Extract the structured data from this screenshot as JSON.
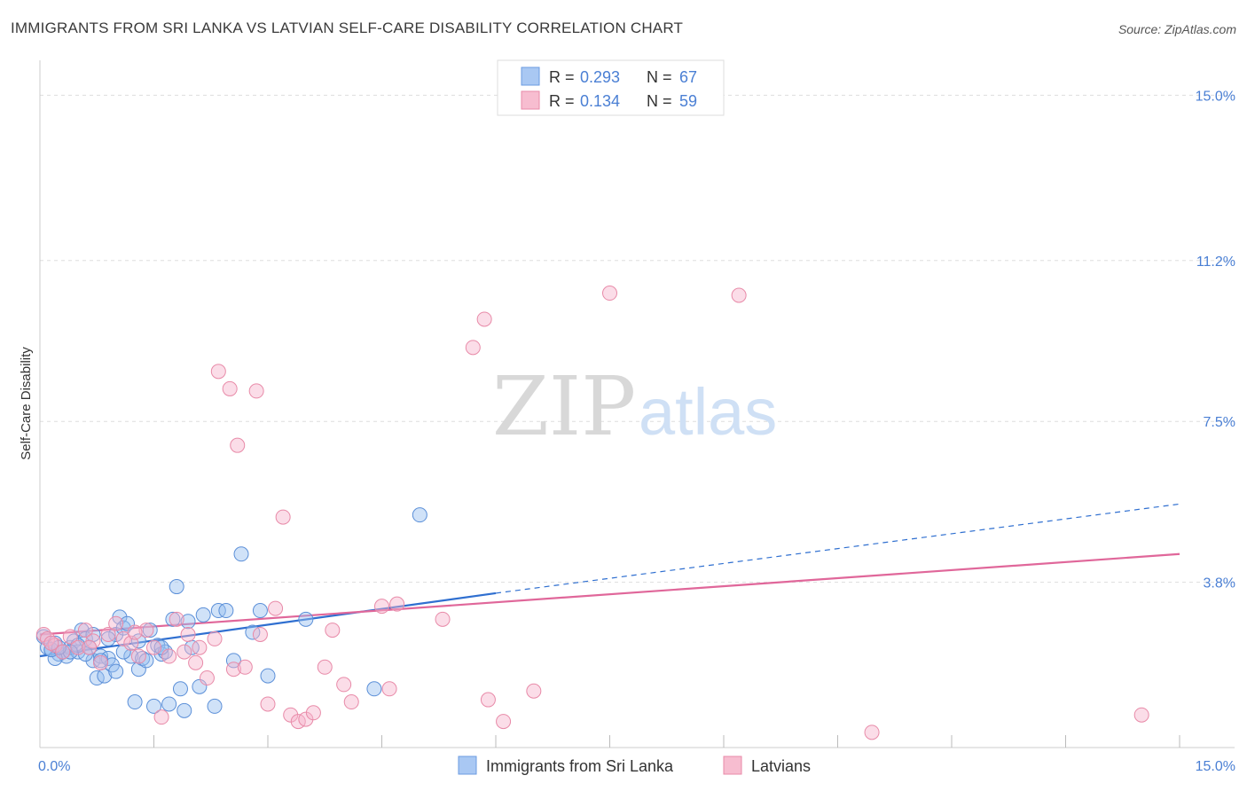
{
  "title": "IMMIGRANTS FROM SRI LANKA VS LATVIAN SELF-CARE DISABILITY CORRELATION CHART",
  "source": "Source: ZipAtlas.com",
  "watermark": {
    "zip": "ZIP",
    "atlas": "atlas"
  },
  "chart_data": {
    "type": "scatter",
    "ylabel": "Self-Care Disability",
    "xlim": [
      0,
      15
    ],
    "ylim": [
      0,
      15.6
    ],
    "y_ticks": [
      {
        "value": 3.8,
        "label": "3.8%"
      },
      {
        "value": 7.5,
        "label": "7.5%"
      },
      {
        "value": 11.2,
        "label": "11.2%"
      },
      {
        "value": 15.0,
        "label": "15.0%"
      }
    ],
    "x_ticks": [
      {
        "value": 0,
        "label": "0.0%"
      },
      {
        "value": 15,
        "label": "15.0%"
      }
    ],
    "legend_top": [
      {
        "r_label": "R =",
        "r_value": "0.293",
        "n_label": "N =",
        "n_value": "67",
        "color": "#a9c8f3",
        "stroke": "#6b9be0"
      },
      {
        "r_label": "R =",
        "r_value": "0.134",
        "n_label": "N =",
        "n_value": "59",
        "color": "#f7bdd0",
        "stroke": "#e88aa8"
      }
    ],
    "series": [
      {
        "name": "Immigrants from Sri Lanka",
        "fill": "rgba(150,190,240,0.45)",
        "stroke": "#5b8fd8",
        "trend": {
          "solid": [
            [
              0,
              2.1
            ],
            [
              6.0,
              3.55
            ]
          ],
          "dashed": [
            [
              6.0,
              3.55
            ],
            [
              15.0,
              5.6
            ]
          ],
          "color": "#2f6fd0"
        },
        "points": [
          [
            0.05,
            2.55
          ],
          [
            0.1,
            2.3
          ],
          [
            0.15,
            2.25
          ],
          [
            0.2,
            2.4
          ],
          [
            0.25,
            2.15
          ],
          [
            0.3,
            2.2
          ],
          [
            0.35,
            2.1
          ],
          [
            0.4,
            2.3
          ],
          [
            0.45,
            2.45
          ],
          [
            0.5,
            2.2
          ],
          [
            0.55,
            2.7
          ],
          [
            0.6,
            2.5
          ],
          [
            0.65,
            2.3
          ],
          [
            0.7,
            2.0
          ],
          [
            0.75,
            1.6
          ],
          [
            0.8,
            2.1
          ],
          [
            0.85,
            1.65
          ],
          [
            0.9,
            2.05
          ],
          [
            0.95,
            1.9
          ],
          [
            1.0,
            2.6
          ],
          [
            1.05,
            3.0
          ],
          [
            1.1,
            2.75
          ],
          [
            1.15,
            2.85
          ],
          [
            1.2,
            2.1
          ],
          [
            1.25,
            1.05
          ],
          [
            1.3,
            1.8
          ],
          [
            1.35,
            2.05
          ],
          [
            1.4,
            2.0
          ],
          [
            1.45,
            2.7
          ],
          [
            1.5,
            0.95
          ],
          [
            1.55,
            2.35
          ],
          [
            1.6,
            2.15
          ],
          [
            1.65,
            2.2
          ],
          [
            1.7,
            1.0
          ],
          [
            1.75,
            2.95
          ],
          [
            1.8,
            3.7
          ],
          [
            1.85,
            1.35
          ],
          [
            1.9,
            0.85
          ],
          [
            1.95,
            2.9
          ],
          [
            2.0,
            2.3
          ],
          [
            2.1,
            1.4
          ],
          [
            2.15,
            3.05
          ],
          [
            2.3,
            0.95
          ],
          [
            2.35,
            3.15
          ],
          [
            2.45,
            3.15
          ],
          [
            2.55,
            2.0
          ],
          [
            2.65,
            4.45
          ],
          [
            2.8,
            2.65
          ],
          [
            2.9,
            3.15
          ],
          [
            3.0,
            1.65
          ],
          [
            3.5,
            2.95
          ],
          [
            4.4,
            1.35
          ],
          [
            5.0,
            5.35
          ],
          [
            0.3,
            2.2
          ],
          [
            0.6,
            2.15
          ],
          [
            0.9,
            2.5
          ],
          [
            1.1,
            2.2
          ],
          [
            0.2,
            2.05
          ],
          [
            0.15,
            2.25
          ],
          [
            0.5,
            2.35
          ],
          [
            0.4,
            2.2
          ],
          [
            0.8,
            2.0
          ],
          [
            1.3,
            2.45
          ],
          [
            1.6,
            2.3
          ],
          [
            0.7,
            2.6
          ],
          [
            1.0,
            1.75
          ],
          [
            0.25,
            2.3
          ]
        ]
      },
      {
        "name": "Latvians",
        "fill": "rgba(247,180,205,0.45)",
        "stroke": "#e88aa8",
        "trend": {
          "solid": [
            [
              0,
              2.6
            ],
            [
              15.0,
              4.45
            ]
          ],
          "color": "#e0679a"
        },
        "points": [
          [
            0.05,
            2.6
          ],
          [
            0.1,
            2.5
          ],
          [
            0.2,
            2.35
          ],
          [
            0.3,
            2.2
          ],
          [
            0.4,
            2.55
          ],
          [
            0.5,
            2.3
          ],
          [
            0.6,
            2.7
          ],
          [
            0.7,
            2.45
          ],
          [
            0.8,
            1.95
          ],
          [
            0.9,
            2.6
          ],
          [
            1.0,
            2.85
          ],
          [
            1.1,
            2.5
          ],
          [
            1.2,
            2.4
          ],
          [
            1.3,
            2.1
          ],
          [
            1.4,
            2.7
          ],
          [
            1.5,
            2.3
          ],
          [
            1.6,
            0.7
          ],
          [
            1.7,
            2.1
          ],
          [
            1.8,
            2.95
          ],
          [
            1.9,
            2.2
          ],
          [
            1.95,
            2.6
          ],
          [
            2.05,
            1.95
          ],
          [
            2.1,
            2.3
          ],
          [
            2.2,
            1.6
          ],
          [
            2.3,
            2.5
          ],
          [
            2.35,
            8.65
          ],
          [
            2.5,
            8.25
          ],
          [
            2.55,
            1.8
          ],
          [
            2.6,
            6.95
          ],
          [
            2.7,
            1.85
          ],
          [
            2.85,
            8.2
          ],
          [
            2.9,
            2.6
          ],
          [
            3.0,
            1.0
          ],
          [
            3.1,
            3.2
          ],
          [
            3.2,
            5.3
          ],
          [
            3.3,
            0.75
          ],
          [
            3.4,
            0.6
          ],
          [
            3.5,
            0.65
          ],
          [
            3.6,
            0.8
          ],
          [
            3.75,
            1.85
          ],
          [
            3.85,
            2.7
          ],
          [
            4.0,
            1.45
          ],
          [
            4.1,
            1.05
          ],
          [
            4.6,
            1.35
          ],
          [
            4.7,
            3.3
          ],
          [
            5.3,
            2.95
          ],
          [
            5.7,
            9.2
          ],
          [
            5.85,
            9.85
          ],
          [
            5.9,
            1.1
          ],
          [
            6.1,
            0.6
          ],
          [
            6.5,
            1.3
          ],
          [
            7.5,
            10.45
          ],
          [
            9.2,
            10.4
          ],
          [
            10.95,
            0.35
          ],
          [
            14.5,
            0.75
          ],
          [
            4.5,
            3.25
          ],
          [
            1.25,
            2.65
          ],
          [
            0.15,
            2.4
          ],
          [
            0.65,
            2.3
          ]
        ]
      }
    ]
  },
  "bottom_legend": [
    {
      "label": "Immigrants from Sri Lanka",
      "color": "#a9c8f3",
      "stroke": "#6b9be0"
    },
    {
      "label": "Latvians",
      "color": "#f7bdd0",
      "stroke": "#e88aa8"
    }
  ]
}
